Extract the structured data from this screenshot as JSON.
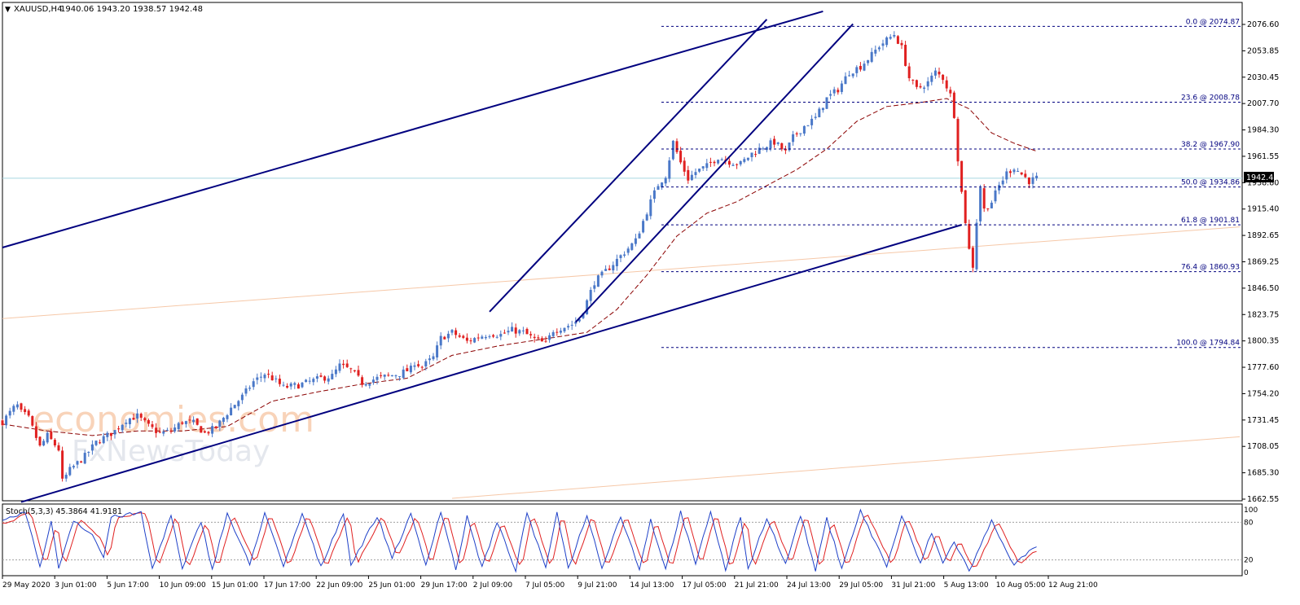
{
  "header": {
    "symbol": "XAUUSD,H4",
    "ohlc": "1940.06 1943.20 1938.57 1942.48"
  },
  "price_axis": {
    "ticks": [
      "2076.60",
      "2053.85",
      "2030.45",
      "2007.70",
      "1984.30",
      "1961.55",
      "1938.80",
      "1915.40",
      "1892.65",
      "1869.25",
      "1846.50",
      "1823.75",
      "1800.35",
      "1777.60",
      "1754.20",
      "1731.45",
      "1708.05",
      "1685.30",
      "1662.55"
    ],
    "current_price": "1942.48"
  },
  "time_axis": {
    "labels": [
      "29 May 2020",
      "3 Jun 01:00",
      "5 Jun 17:00",
      "10 Jun 09:00",
      "15 Jun 01:00",
      "17 Jun 17:00",
      "22 Jun 09:00",
      "25 Jun 01:00",
      "29 Jun 17:00",
      "2 Jul 09:00",
      "7 Jul 05:00",
      "9 Jul 21:00",
      "14 Jul 13:00",
      "17 Jul 05:00",
      "21 Jul 21:00",
      "24 Jul 13:00",
      "29 Jul 05:00",
      "31 Jul 21:00",
      "5 Aug 13:00",
      "10 Aug 05:00",
      "12 Aug 21:00"
    ]
  },
  "fibonacci": [
    {
      "label": "0.0 @ 2074.87",
      "level": 2074.87
    },
    {
      "label": "23.6 @ 2008.78",
      "level": 2008.78
    },
    {
      "label": "38.2 @ 1967.90",
      "level": 1967.9
    },
    {
      "label": "50.0 @ 1934.86",
      "level": 1934.86
    },
    {
      "label": "61.8 @ 1901.81",
      "level": 1901.81
    },
    {
      "label": "76.4 @ 1860.93",
      "level": 1860.93
    },
    {
      "label": "100.0 @ 1794.84",
      "level": 1794.84
    }
  ],
  "stochastic": {
    "label": "Stoch(5,3,3) 45.3864 41.9181",
    "axis_labels": [
      "100",
      "80",
      "20",
      "0"
    ],
    "levels": [
      80,
      20
    ]
  },
  "watermark": {
    "line1": "economies.com",
    "line2": "FxNewsToday"
  },
  "colors": {
    "bull": "#4a78c8",
    "bear": "#e02020",
    "channel": "#00007f",
    "fib": "#00007f",
    "ma": "#8b0000",
    "stoch_main": "#1e40c8",
    "stoch_signal": "#e02020",
    "current_line": "#a8d8e0",
    "watermark": "#f4b080"
  },
  "chart_data": {
    "type": "candlestick",
    "symbol": "XAUUSD",
    "timeframe": "H4",
    "ylim": [
      1660,
      2088
    ],
    "x_labels": [
      "29 May 2020",
      "3 Jun 01:00",
      "5 Jun 17:00",
      "10 Jun 09:00",
      "15 Jun 01:00",
      "17 Jun 17:00",
      "22 Jun 09:00",
      "25 Jun 01:00",
      "29 Jun 17:00",
      "2 Jul 09:00",
      "7 Jul 05:00",
      "9 Jul 21:00",
      "14 Jul 13:00",
      "17 Jul 05:00",
      "21 Jul 21:00",
      "24 Jul 13:00",
      "29 Jul 05:00",
      "31 Jul 21:00",
      "5 Aug 13:00",
      "10 Aug 05:00",
      "12 Aug 21:00"
    ],
    "last_ohlc": {
      "open": 1940.06,
      "high": 1943.2,
      "low": 1938.57,
      "close": 1942.48
    },
    "close_path": [
      [
        0,
        1730
      ],
      [
        3,
        1742
      ],
      [
        4,
        1744
      ],
      [
        5,
        1738
      ],
      [
        6,
        1736
      ],
      [
        7,
        1733
      ],
      [
        10,
        1708
      ],
      [
        12,
        1718
      ],
      [
        15,
        1706
      ],
      [
        16,
        1678
      ],
      [
        18,
        1688
      ],
      [
        22,
        1700
      ],
      [
        25,
        1712
      ],
      [
        30,
        1722
      ],
      [
        33,
        1732
      ],
      [
        36,
        1735
      ],
      [
        39,
        1726
      ],
      [
        42,
        1720
      ],
      [
        45,
        1722
      ],
      [
        48,
        1730
      ],
      [
        51,
        1729
      ],
      [
        54,
        1720
      ],
      [
        57,
        1725
      ],
      [
        61,
        1742
      ],
      [
        64,
        1752
      ],
      [
        67,
        1765
      ],
      [
        70,
        1772
      ],
      [
        72,
        1768
      ],
      [
        75,
        1760
      ],
      [
        79,
        1762
      ],
      [
        82,
        1765
      ],
      [
        85,
        1768
      ],
      [
        88,
        1770
      ],
      [
        90,
        1779
      ],
      [
        93,
        1775
      ],
      [
        96,
        1764
      ],
      [
        100,
        1768
      ],
      [
        103,
        1770
      ],
      [
        106,
        1772
      ],
      [
        109,
        1776
      ],
      [
        110,
        1782
      ],
      [
        112,
        1778
      ],
      [
        115,
        1786
      ],
      [
        117,
        1803
      ],
      [
        120,
        1808
      ],
      [
        121,
        1806
      ],
      [
        124,
        1800
      ],
      [
        127,
        1804
      ],
      [
        130,
        1807
      ],
      [
        133,
        1806
      ],
      [
        136,
        1810
      ],
      [
        139,
        1808
      ],
      [
        142,
        1802
      ],
      [
        145,
        1798
      ],
      [
        147,
        1810
      ],
      [
        150,
        1813
      ],
      [
        152,
        1815
      ],
      [
        154,
        1820
      ],
      [
        156,
        1835
      ],
      [
        158,
        1852
      ],
      [
        160,
        1858
      ],
      [
        163,
        1868
      ],
      [
        166,
        1878
      ],
      [
        169,
        1888
      ],
      [
        171,
        1905
      ],
      [
        173,
        1922
      ],
      [
        175,
        1937
      ],
      [
        177,
        1945
      ],
      [
        179,
        1974
      ],
      [
        181,
        1956
      ],
      [
        183,
        1942
      ],
      [
        185,
        1948
      ],
      [
        188,
        1953
      ],
      [
        191,
        1961
      ],
      [
        194,
        1957
      ],
      [
        197,
        1955
      ],
      [
        200,
        1964
      ],
      [
        203,
        1970
      ],
      [
        206,
        1974
      ],
      [
        209,
        1965
      ],
      [
        211,
        1978
      ],
      [
        214,
        1988
      ],
      [
        217,
        1995
      ],
      [
        220,
        2012
      ],
      [
        223,
        2020
      ],
      [
        226,
        2035
      ],
      [
        229,
        2040
      ],
      [
        232,
        2050
      ],
      [
        234,
        2058
      ],
      [
        236,
        2063
      ],
      [
        238,
        2068
      ],
      [
        240,
        2056
      ],
      [
        242,
        2030
      ],
      [
        244,
        2020
      ],
      [
        247,
        2026
      ],
      [
        249,
        2035
      ],
      [
        251,
        2030
      ],
      [
        253,
        2015
      ],
      [
        254,
        1998
      ],
      [
        255,
        1960
      ],
      [
        256,
        1930
      ],
      [
        257,
        1905
      ],
      [
        258,
        1880
      ],
      [
        259,
        1866
      ],
      [
        260,
        1905
      ],
      [
        261,
        1935
      ],
      [
        262,
        1915
      ],
      [
        264,
        1922
      ],
      [
        266,
        1936
      ],
      [
        268,
        1947
      ],
      [
        270,
        1952
      ],
      [
        272,
        1946
      ],
      [
        274,
        1940
      ],
      [
        276,
        1942.48
      ]
    ],
    "moving_average": [
      [
        0,
        1728
      ],
      [
        12,
        1722
      ],
      [
        24,
        1718
      ],
      [
        36,
        1722
      ],
      [
        48,
        1722
      ],
      [
        60,
        1726
      ],
      [
        72,
        1748
      ],
      [
        84,
        1756
      ],
      [
        96,
        1763
      ],
      [
        108,
        1768
      ],
      [
        120,
        1788
      ],
      [
        132,
        1796
      ],
      [
        144,
        1802
      ],
      [
        156,
        1808
      ],
      [
        164,
        1828
      ],
      [
        172,
        1858
      ],
      [
        180,
        1892
      ],
      [
        188,
        1912
      ],
      [
        196,
        1922
      ],
      [
        204,
        1936
      ],
      [
        212,
        1950
      ],
      [
        220,
        1968
      ],
      [
        228,
        1992
      ],
      [
        236,
        2005
      ],
      [
        244,
        2008
      ],
      [
        252,
        2012
      ],
      [
        258,
        2003
      ],
      [
        264,
        1982
      ],
      [
        270,
        1973
      ],
      [
        276,
        1966
      ]
    ],
    "trendlines": [
      {
        "name": "outer-channel-upper",
        "from": [
          0,
          1882
        ],
        "to": [
          219,
          2088
        ]
      },
      {
        "name": "outer-channel-lower",
        "from": [
          5,
          1660
        ],
        "to": [
          256,
          1901.8
        ]
      },
      {
        "name": "steep-channel-upper",
        "from": [
          130,
          1826
        ],
        "to": [
          204,
          2081
        ]
      },
      {
        "name": "steep-channel-lower",
        "from": [
          153,
          1817
        ],
        "to": [
          227,
          2077
        ]
      }
    ],
    "stochastic": {
      "main": 45.3864,
      "signal": 41.9181,
      "params": [
        5,
        3,
        3
      ],
      "levels": [
        80,
        20
      ]
    }
  }
}
